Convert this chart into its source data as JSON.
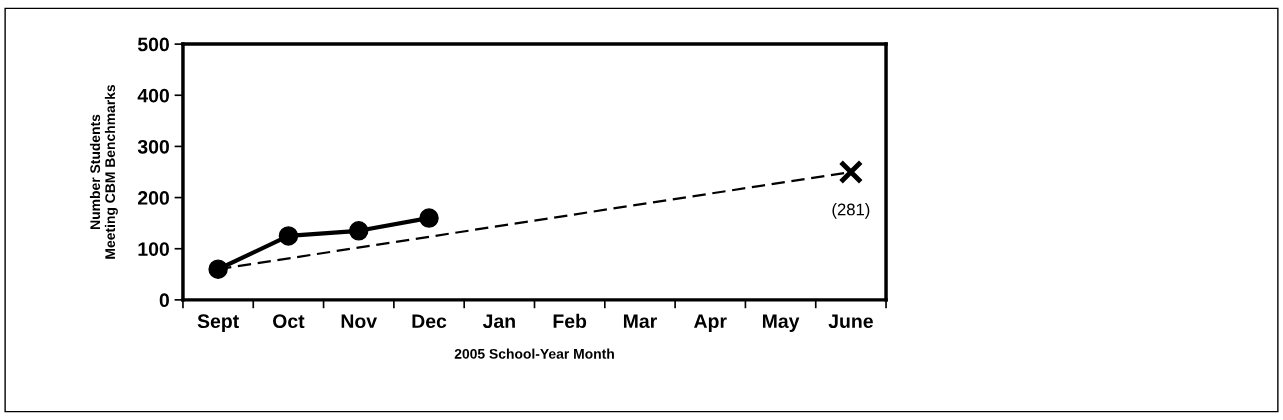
{
  "chart_data": {
    "type": "line",
    "xlabel": "2005 School-Year Month",
    "ylabel": "Number Students\nMeeting CBM Benchmarks",
    "categories": [
      "Sept",
      "Oct",
      "Nov",
      "Dec",
      "Jan",
      "Feb",
      "Mar",
      "Apr",
      "May",
      "June"
    ],
    "series": [
      {
        "color": "#000000",
        "marker": "circle",
        "line_style": "solid",
        "values": [
          60,
          125,
          135,
          160,
          null,
          null,
          null,
          null,
          null,
          null
        ]
      },
      {
        "color": "#000000",
        "line_style": "dashed",
        "values": [
          60,
          null,
          null,
          null,
          null,
          null,
          null,
          null,
          null,
          250
        ]
      },
      {
        "type": "scatter",
        "color": "#000000",
        "marker": "cross",
        "values": [
          null,
          null,
          null,
          null,
          null,
          null,
          null,
          null,
          null,
          250
        ]
      }
    ],
    "annotations": [
      "(281)"
    ],
    "ylim": [
      0,
      500
    ],
    "yticks": [
      0,
      100,
      200,
      300,
      400,
      500
    ],
    "grid": false,
    "legend": false
  }
}
